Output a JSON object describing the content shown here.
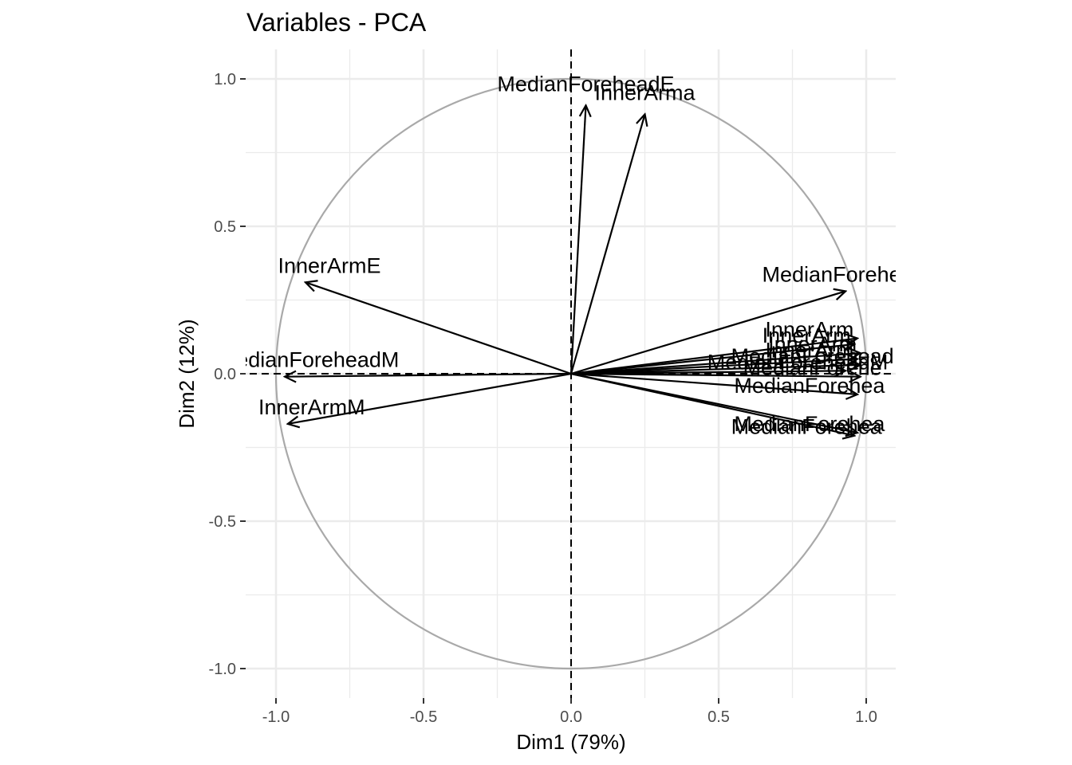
{
  "chart_data": {
    "type": "pca-variable-correlation-circle",
    "title": "Variables - PCA",
    "xlabel": "Dim1 (79%)",
    "ylabel": "Dim2 (12%)",
    "xlim": [
      -1.1,
      1.1
    ],
    "ylim": [
      -1.1,
      1.1
    ],
    "xticks": [
      -1.0,
      -0.5,
      0.0,
      0.5,
      1.0
    ],
    "yticks": [
      -1.0,
      -0.5,
      0.0,
      0.5,
      1.0
    ],
    "xtick_labels": [
      "-1.0",
      "-0.5",
      "0.0",
      "0.5",
      "1.0"
    ],
    "ytick_labels": [
      "-1.0",
      "-0.5",
      "0.0",
      "0.5",
      "1.0"
    ],
    "grid": true,
    "reference_lines": "dashed lines at x=0 and y=0",
    "unit_circle": true,
    "colors": {
      "grid": "#ebebeb",
      "circle": "#a9a9a9",
      "arrow": "#000000",
      "tick": "#4d4d4d"
    },
    "variables": [
      {
        "label": "MedianForeheadE",
        "x": 0.05,
        "y": 0.91
      },
      {
        "label": "InnerArma",
        "x": 0.25,
        "y": 0.88
      },
      {
        "label": "InnerArmE",
        "x": -0.9,
        "y": 0.31
      },
      {
        "label": "MedianForeheadM",
        "x": -0.97,
        "y": -0.01
      },
      {
        "label": "InnerArmM",
        "x": -0.96,
        "y": -0.17
      },
      {
        "label": "MedianForehea",
        "x": 0.93,
        "y": 0.28
      },
      {
        "label": "InnerArm",
        "x": 0.97,
        "y": 0.12
      },
      {
        "label": "InnerArm",
        "x": 0.96,
        "y": 0.1
      },
      {
        "label": "InnerArm",
        "x": 0.98,
        "y": 0.07
      },
      {
        "label": "InnerArm",
        "x": 0.97,
        "y": 0.05
      },
      {
        "label": "MedianForehead",
        "x": 0.98,
        "y": 0.03
      },
      {
        "label": "MedianForeheadM",
        "x": 0.93,
        "y": 0.01
      },
      {
        "label": "MedianForehe",
        "x": 0.98,
        "y": -0.01
      },
      {
        "label": "MedianForehea",
        "x": 0.97,
        "y": -0.07
      },
      {
        "label": "MedianForehea",
        "x": 0.97,
        "y": -0.2
      },
      {
        "label": "MedianForehea",
        "x": 0.96,
        "y": -0.21
      }
    ]
  }
}
